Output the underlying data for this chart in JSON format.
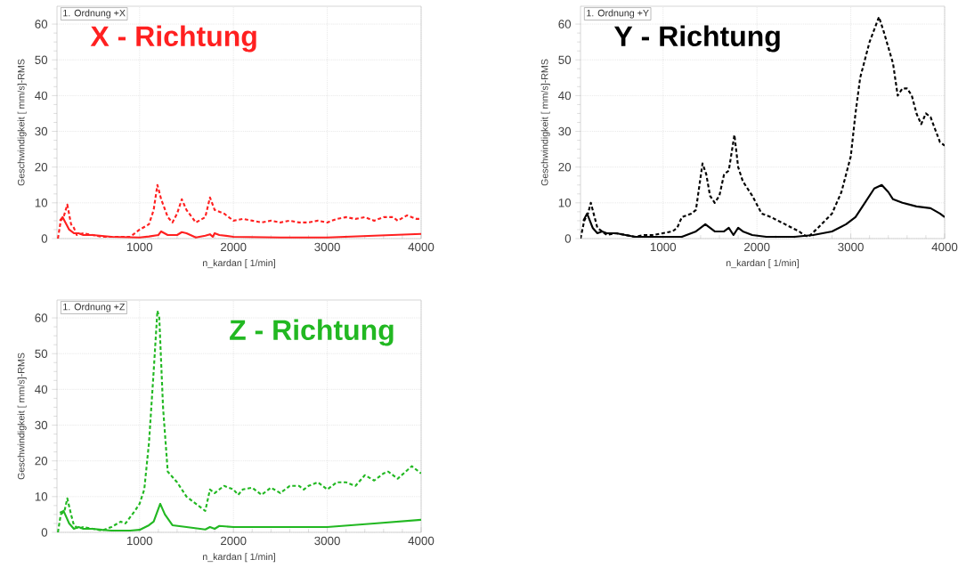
{
  "chart_data": [
    {
      "type": "line",
      "title": "X - Richtung",
      "xlabel": "n_kardan [ 1/min]",
      "ylabel": "Geschwindigkeit [ mm/s]-RMS",
      "annotations": [
        "1. Ordnung  +X"
      ],
      "xlim": [
        120,
        4000
      ],
      "ylim": [
        0,
        65
      ],
      "xticks": [
        1000,
        2000,
        3000,
        4000
      ],
      "yticks": [
        0,
        10,
        20,
        30,
        40,
        50,
        60
      ],
      "grid": true,
      "series": [
        {
          "color": "#ff2020",
          "line_style": "dashed",
          "x": [
            130,
            160,
            190,
            230,
            270,
            300,
            330,
            400,
            500,
            600,
            700,
            800,
            900,
            1000,
            1100,
            1150,
            1190,
            1230,
            1300,
            1350,
            1400,
            1450,
            1500,
            1600,
            1700,
            1750,
            1800,
            1900,
            2000,
            2100,
            2200,
            2300,
            2400,
            2500,
            2600,
            2700,
            2800,
            2900,
            3000,
            3100,
            3200,
            3300,
            3400,
            3500,
            3600,
            3700,
            3750,
            3850,
            3950,
            4000
          ],
          "values": [
            0,
            5,
            6,
            9.5,
            4,
            3,
            1,
            1.5,
            1,
            0.5,
            0.5,
            0.5,
            0.5,
            2.5,
            4,
            8,
            15,
            11,
            6,
            4.5,
            7,
            11,
            8,
            4.5,
            6,
            11.5,
            8,
            7,
            5,
            5.5,
            5,
            4.5,
            5,
            4.5,
            5,
            4.5,
            4.5,
            5,
            4.5,
            5.5,
            6,
            5.5,
            6,
            5,
            6,
            6,
            5,
            6.5,
            5.5,
            5.5
          ]
        },
        {
          "color": "#ff2020",
          "line_style": "solid",
          "x": [
            150,
            180,
            250,
            300,
            350,
            400,
            500,
            700,
            1000,
            1100,
            1200,
            1230,
            1300,
            1400,
            1450,
            1500,
            1600,
            1700,
            1750,
            1780,
            1800,
            1850,
            2000,
            2500,
            3000,
            3500,
            4000
          ],
          "values": [
            5,
            6,
            2.5,
            1.5,
            1.5,
            1,
            1,
            0.5,
            0.3,
            0.6,
            1,
            2,
            1,
            1,
            1.8,
            1.5,
            0.3,
            0.8,
            1.2,
            0.5,
            1.5,
            1,
            0.5,
            0.3,
            0.3,
            0.8,
            1.3
          ]
        }
      ]
    },
    {
      "type": "line",
      "title": "Y - Richtung",
      "xlabel": "n_kardan [ 1/min]",
      "ylabel": "Geschwindigkeit [ mm/s]-RMS",
      "annotations": [
        "1. Ordnung  +Y"
      ],
      "xlim": [
        120,
        4000
      ],
      "ylim": [
        0,
        65
      ],
      "xticks": [
        1000,
        2000,
        3000,
        4000
      ],
      "yticks": [
        0,
        10,
        20,
        30,
        40,
        50,
        60
      ],
      "grid": true,
      "series": [
        {
          "color": "#000000",
          "line_style": "dashed",
          "x": [
            120,
            160,
            200,
            230,
            260,
            300,
            350,
            400,
            500,
            600,
            700,
            800,
            900,
            1000,
            1100,
            1150,
            1200,
            1300,
            1350,
            1420,
            1460,
            1500,
            1550,
            1600,
            1650,
            1700,
            1760,
            1800,
            1850,
            1950,
            2050,
            2150,
            2300,
            2450,
            2500,
            2550,
            2650,
            2800,
            2900,
            3000,
            3050,
            3100,
            3150,
            3200,
            3300,
            3350,
            3450,
            3500,
            3550,
            3600,
            3650,
            3700,
            3750,
            3800,
            3850,
            3950,
            4000
          ],
          "values": [
            0,
            5,
            7,
            10,
            7,
            3,
            2,
            1,
            1.5,
            1,
            0.5,
            1,
            1,
            1.5,
            2,
            3,
            6,
            7,
            8,
            21,
            18,
            12,
            10,
            12,
            18,
            19,
            29,
            20,
            16,
            12,
            7,
            6,
            4,
            2,
            1,
            0.5,
            3,
            7,
            13,
            23,
            35,
            45,
            50,
            55,
            62,
            58,
            49,
            40,
            42,
            42,
            40,
            35,
            32,
            35,
            34,
            27,
            26
          ]
        },
        {
          "color": "#000000",
          "line_style": "solid",
          "x": [
            150,
            190,
            250,
            300,
            350,
            400,
            500,
            600,
            700,
            1000,
            1200,
            1350,
            1450,
            1500,
            1550,
            1650,
            1700,
            1750,
            1800,
            1850,
            1950,
            2100,
            2400,
            2600,
            2800,
            2950,
            3050,
            3150,
            3250,
            3330,
            3400,
            3450,
            3550,
            3700,
            3850,
            3950,
            4000
          ],
          "values": [
            5,
            7,
            3,
            1.5,
            2,
            1.5,
            1.5,
            1,
            0.5,
            0.5,
            0.5,
            2,
            4,
            3,
            2,
            2,
            3,
            1,
            3,
            2,
            1,
            0.5,
            0.5,
            1,
            2,
            4,
            6,
            10,
            14,
            15,
            13,
            11,
            10,
            9,
            8.5,
            7,
            6
          ]
        }
      ]
    },
    {
      "type": "line",
      "title": "Z - Richtung",
      "xlabel": "n_kardan [ 1/min]",
      "ylabel": "Geschwindigkeit [ mm/s]-RMS",
      "annotations": [
        "1. Ordnung  +Z"
      ],
      "xlim": [
        120,
        4000
      ],
      "ylim": [
        0,
        65
      ],
      "xticks": [
        1000,
        2000,
        3000,
        4000
      ],
      "yticks": [
        0,
        10,
        20,
        30,
        40,
        50,
        60
      ],
      "grid": true,
      "series": [
        {
          "color": "#22b822",
          "line_style": "dashed",
          "x": [
            130,
            160,
            200,
            230,
            270,
            300,
            350,
            400,
            500,
            600,
            700,
            800,
            850,
            950,
            1000,
            1050,
            1100,
            1150,
            1190,
            1210,
            1250,
            1300,
            1400,
            1500,
            1600,
            1700,
            1750,
            1800,
            1900,
            2000,
            2050,
            2100,
            2200,
            2300,
            2400,
            2500,
            2600,
            2700,
            2750,
            2800,
            2900,
            3000,
            3100,
            3200,
            3300,
            3400,
            3500,
            3600,
            3650,
            3750,
            3900,
            4000
          ],
          "values": [
            0,
            5,
            6,
            9.5,
            5,
            2,
            1,
            1.5,
            1,
            0.5,
            1.5,
            3,
            2.5,
            6,
            8,
            12,
            25,
            45,
            62,
            60,
            35,
            17,
            14,
            10,
            8,
            6,
            12,
            11,
            13,
            12,
            10.5,
            12,
            12.5,
            10.5,
            12.5,
            11,
            13,
            13,
            12,
            13,
            14,
            12,
            14,
            14,
            13,
            16,
            14.5,
            16.5,
            17,
            15,
            18.5,
            16.5
          ]
        },
        {
          "color": "#22b822",
          "line_style": "solid",
          "x": [
            150,
            190,
            250,
            300,
            350,
            400,
            500,
            600,
            700,
            900,
            1000,
            1100,
            1150,
            1220,
            1270,
            1350,
            1500,
            1700,
            1750,
            1800,
            1850,
            2000,
            2500,
            3000,
            3500,
            4000
          ],
          "values": [
            5.5,
            6,
            2.5,
            1,
            1.5,
            1,
            1,
            0.7,
            0.5,
            0.5,
            0.7,
            2,
            3,
            8,
            5,
            2,
            1.5,
            0.8,
            1.5,
            1,
            1.8,
            1.5,
            1.5,
            1.5,
            2.5,
            3.5
          ]
        }
      ]
    }
  ]
}
